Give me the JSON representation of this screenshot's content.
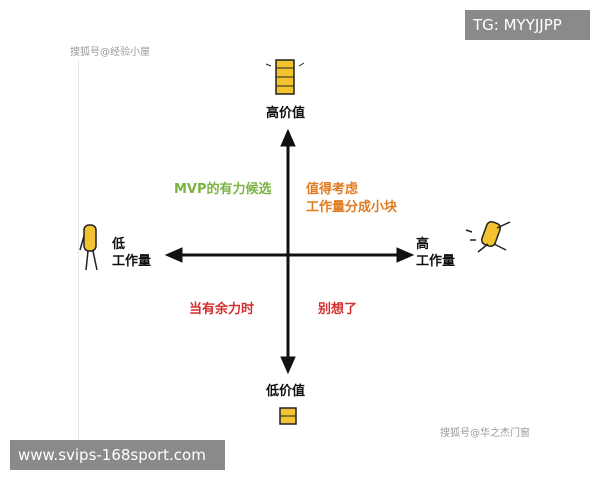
{
  "watermarks": {
    "top_left": "搜狐号@经验小屋",
    "bottom_right": "搜狐号@华之杰门窗"
  },
  "badges": {
    "top_right": "TG: MYYJJPP",
    "bottom_left": "www.svips-168sport.com"
  },
  "axes": {
    "top": "高价值",
    "bottom": "低价值",
    "left": [
      "低",
      "工作量"
    ],
    "right": [
      "高",
      "工作量"
    ]
  },
  "quadrants": {
    "top_left": {
      "text": "MVP的有力候选",
      "color": "#7cb342"
    },
    "top_right": {
      "lines": [
        "值得考虑",
        "工作量分成小块"
      ],
      "color": "#e07b1f"
    },
    "bottom_left": {
      "text": "当有余力时",
      "color": "#d32f2f"
    },
    "bottom_right": {
      "text": "别想了",
      "color": "#d32f2f"
    }
  }
}
